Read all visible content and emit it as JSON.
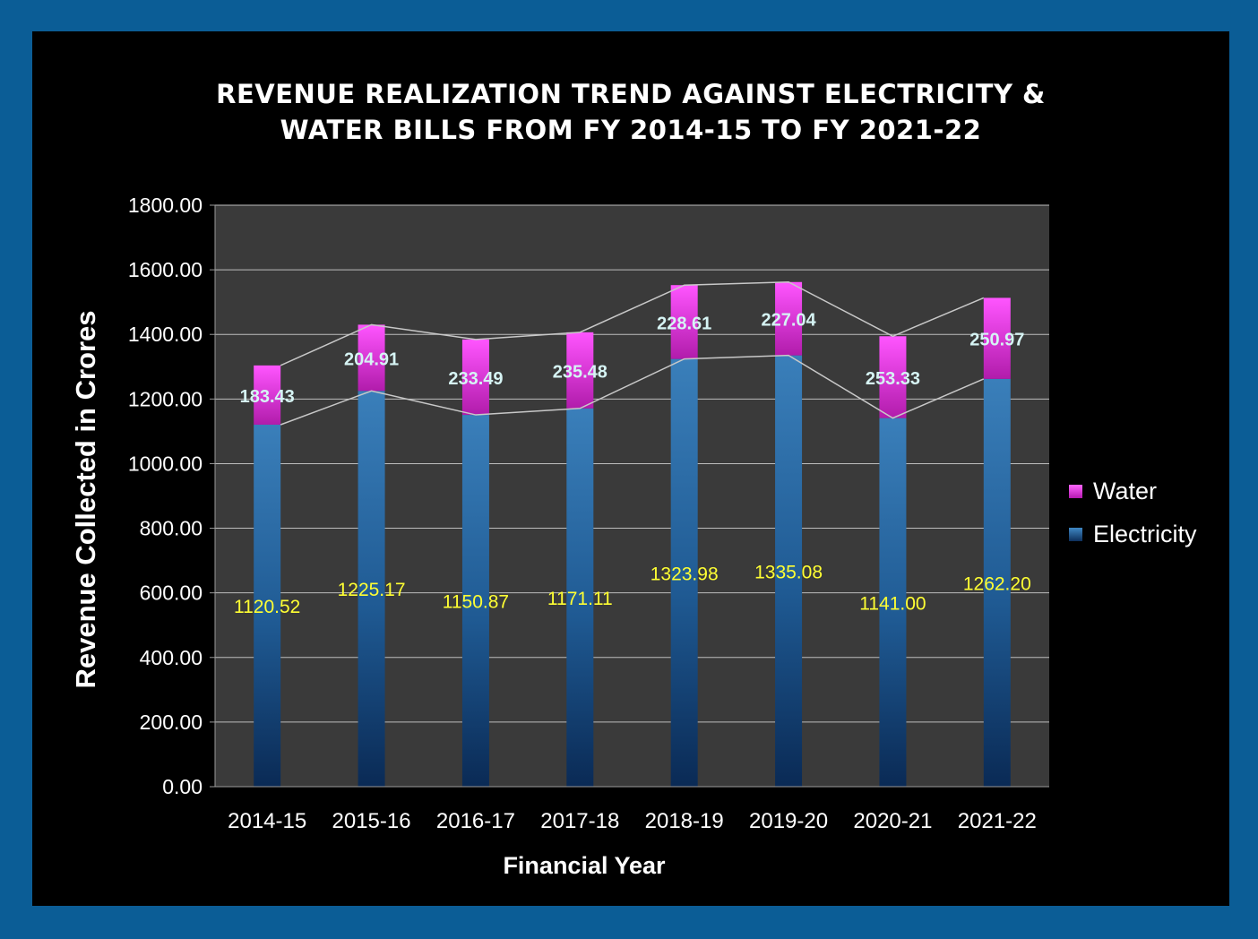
{
  "chart_data": {
    "type": "bar",
    "stacked": true,
    "title_lines": [
      "REVENUE REALIZATION TREND AGAINST ELECTRICITY &",
      "WATER BILLS  FROM FY 2014-15 TO FY 2021-22"
    ],
    "xlabel": "Financial Year",
    "ylabel": "Revenue Collected in Crores",
    "categories": [
      "2014-15",
      "2015-16",
      "2016-17",
      "2017-18",
      "2018-19",
      "2019-20",
      "2020-21",
      "2021-22"
    ],
    "series": [
      {
        "name": "Electricity",
        "values": [
          1120.52,
          1225.17,
          1150.87,
          1171.11,
          1323.98,
          1335.08,
          1141.0,
          1262.2
        ],
        "labels": [
          "1120.52",
          "1225.17",
          "1150.87",
          "1171.11",
          "1323.98",
          "1335.08",
          "1141.00",
          "1262.20"
        ],
        "color": "#2d6fa6",
        "label_color": "#ffff33"
      },
      {
        "name": "Water",
        "values": [
          183.43,
          204.91,
          233.49,
          235.48,
          228.61,
          227.04,
          253.33,
          250.97
        ],
        "labels": [
          "183.43",
          "204.91",
          "233.49",
          "235.48",
          "228.61",
          "227.04",
          "253.33",
          "250.97"
        ],
        "color": "#e23ce0",
        "label_color": "#d6f4f4"
      }
    ],
    "ylim": [
      0,
      1800
    ],
    "yticks": [
      0,
      200,
      400,
      600,
      800,
      1000,
      1200,
      1400,
      1600,
      1800
    ],
    "ytick_labels": [
      "0.00",
      "200.00",
      "400.00",
      "600.00",
      "800.00",
      "1000.00",
      "1200.00",
      "1400.00",
      "1600.00",
      "1800.00"
    ],
    "grid": true,
    "series_lines": true,
    "legend": {
      "position": "right",
      "order": [
        "Water",
        "Electricity"
      ]
    },
    "colors": {
      "page_border": "#0b5d96",
      "frame": "#000000",
      "plot_bg": "#3a3a3a",
      "grid": "#bdbdbd",
      "series_line": "#c8c8c8"
    }
  }
}
